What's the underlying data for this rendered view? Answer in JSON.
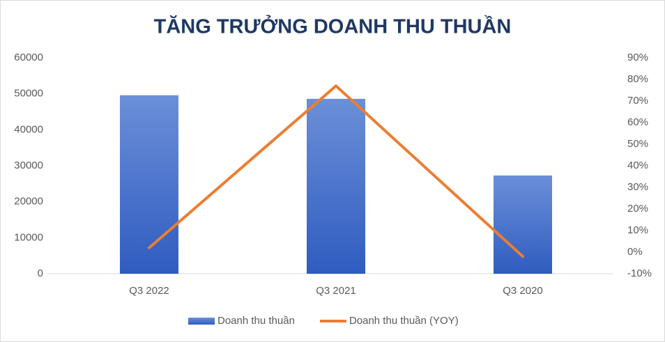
{
  "chart_data": {
    "type": "combo",
    "title": "TĂNG TRƯỞNG DOANH THU THUẦN",
    "categories": [
      "Q3 2022",
      "Q3 2021",
      "Q3 2020"
    ],
    "series": [
      {
        "name": "Doanh thu thuần",
        "type": "bar",
        "color": "#4472c4",
        "values": [
          49600,
          48600,
          27300
        ]
      },
      {
        "name": "Doanh thu thuần (YOY)",
        "type": "line",
        "axis": "y2",
        "color": "#ed7d31",
        "values": [
          2,
          77,
          -2
        ]
      }
    ],
    "ylim": [
      0,
      60000
    ],
    "yticks": [
      0,
      10000,
      20000,
      30000,
      40000,
      50000,
      60000
    ],
    "y2lim": [
      -10,
      90
    ],
    "y2ticks": [
      {
        "value": -10,
        "label": "-10%"
      },
      {
        "value": 0,
        "label": "0%"
      },
      {
        "value": 10,
        "label": "10%"
      },
      {
        "value": 20,
        "label": "20%"
      },
      {
        "value": 30,
        "label": "30%"
      },
      {
        "value": 40,
        "label": "40%"
      },
      {
        "value": 50,
        "label": "50%"
      },
      {
        "value": 60,
        "label": "60%"
      },
      {
        "value": 70,
        "label": "70%"
      },
      {
        "value": 80,
        "label": "80%"
      },
      {
        "value": 90,
        "label": "90%"
      }
    ],
    "grid": false,
    "legend": "bottom"
  }
}
